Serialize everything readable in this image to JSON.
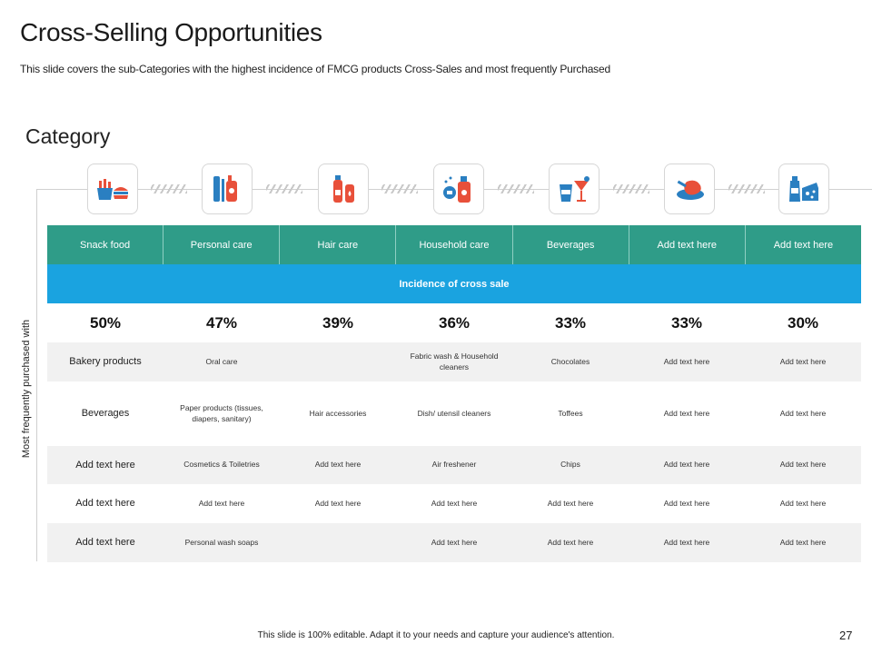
{
  "slide": {
    "title": "Cross-Selling Opportunities",
    "subtitle": "This slide covers the sub-Categories with the highest incidence of FMCG products Cross-Sales and most frequently Purchased",
    "section_label": "Category",
    "vertical_label": "Most frequently purchased with",
    "footer": "This slide is 100% editable.  Adapt it to your needs and capture your audience's attention.",
    "page_number": "27"
  },
  "icons": [
    "fast-food-icon",
    "personal-care-icon",
    "hair-care-icon",
    "household-icon",
    "beverages-icon",
    "meat-icon",
    "dairy-icon"
  ],
  "colors": {
    "header_teal": "#2f9c88",
    "band_blue": "#1aa3e0",
    "icon_red": "#e8503a",
    "icon_blue": "#2a7fc1",
    "shade": "#f1f1f1"
  },
  "table": {
    "headers": [
      "Snack food",
      "Personal care",
      "Hair care",
      "Household care",
      "Beverages",
      "Add text here",
      "Add text here"
    ],
    "band": "Incidence of cross sale",
    "percentages": [
      "50%",
      "47%",
      "39%",
      "36%",
      "33%",
      "33%",
      "30%"
    ],
    "rows": [
      [
        "Bakery products",
        "Oral care",
        "",
        "Fabric wash & Household cleaners",
        "Chocolates",
        "Add text here",
        "Add text here"
      ],
      [
        "Beverages",
        "Paper products (tissues, diapers, sanitary)",
        "Hair accessories",
        "Dish/ utensil cleaners",
        "Toffees",
        "Add text here",
        "Add text here"
      ],
      [
        "Add text here",
        "Cosmetics & Toiletries",
        "Add text here",
        "Air freshener",
        "Chips",
        "Add text here",
        "Add text here"
      ],
      [
        "Add text here",
        "Add text here",
        "Add text here",
        "Add text here",
        "Add text here",
        "Add text here",
        "Add text here"
      ],
      [
        "Add text here",
        "Personal wash soaps",
        "",
        "Add text here",
        "Add text here",
        "Add text here",
        "Add text here"
      ]
    ]
  }
}
